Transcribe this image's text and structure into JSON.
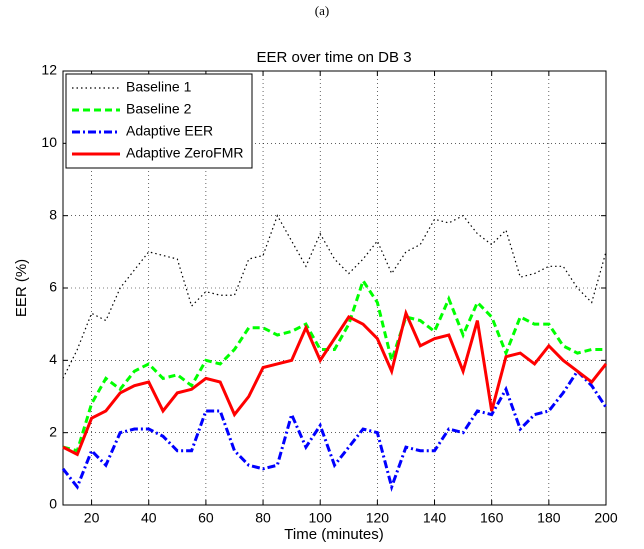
{
  "caption": "(a)",
  "chart_data": {
    "type": "line",
    "title": "EER over time on DB 3",
    "x_label": "Time (minutes)",
    "y_label": "EER (%)",
    "x": [
      10,
      15,
      20,
      25,
      30,
      35,
      40,
      45,
      50,
      55,
      60,
      65,
      70,
      75,
      80,
      85,
      90,
      95,
      100,
      105,
      110,
      115,
      120,
      125,
      130,
      135,
      140,
      145,
      150,
      155,
      160,
      165,
      170,
      175,
      180,
      185,
      190,
      195,
      200
    ],
    "series": [
      {
        "name": "Baseline 1",
        "color": "#000000",
        "linestyle": "dotted",
        "values": [
          3.5,
          4.3,
          5.3,
          5.1,
          6.0,
          6.5,
          7.0,
          6.9,
          6.8,
          5.5,
          5.9,
          5.8,
          5.8,
          6.8,
          6.9,
          8.0,
          7.3,
          6.6,
          7.5,
          6.8,
          6.4,
          6.8,
          7.3,
          6.4,
          7.0,
          7.2,
          7.9,
          7.8,
          8.0,
          7.5,
          7.2,
          7.6,
          6.3,
          6.4,
          6.6,
          6.6,
          6.0,
          5.6,
          7.0
        ]
      },
      {
        "name": "Baseline 2",
        "color": "#00ff00",
        "linestyle": "dashed",
        "values": [
          1.6,
          1.5,
          2.8,
          3.5,
          3.2,
          3.7,
          3.9,
          3.5,
          3.6,
          3.3,
          4.0,
          3.9,
          4.3,
          4.9,
          4.9,
          4.7,
          4.8,
          5.0,
          4.3,
          4.3,
          5.0,
          6.2,
          5.6,
          4.0,
          5.2,
          5.1,
          4.8,
          5.7,
          4.7,
          5.6,
          5.2,
          4.2,
          5.2,
          5.0,
          5.0,
          4.4,
          4.2,
          4.3,
          4.3
        ]
      },
      {
        "name": "Adaptive EER",
        "color": "#0000ff",
        "linestyle": "dashdot",
        "values": [
          1.0,
          0.5,
          1.5,
          1.1,
          2.0,
          2.1,
          2.1,
          1.9,
          1.5,
          1.5,
          2.6,
          2.6,
          1.5,
          1.1,
          1.0,
          1.1,
          2.5,
          1.6,
          2.2,
          1.1,
          1.6,
          2.1,
          2.0,
          0.5,
          1.6,
          1.5,
          1.5,
          2.1,
          2.0,
          2.6,
          2.5,
          3.2,
          2.1,
          2.5,
          2.6,
          3.1,
          3.7,
          3.3,
          2.7
        ]
      },
      {
        "name": "Adaptive ZeroFMR",
        "color": "#ff0000",
        "linestyle": "solid",
        "values": [
          1.6,
          1.4,
          2.4,
          2.6,
          3.1,
          3.3,
          3.4,
          2.6,
          3.1,
          3.2,
          3.5,
          3.4,
          2.5,
          3.0,
          3.8,
          3.9,
          4.0,
          4.9,
          4.0,
          4.6,
          5.2,
          5.0,
          4.6,
          3.7,
          5.3,
          4.4,
          4.6,
          4.7,
          3.7,
          5.1,
          2.6,
          4.1,
          4.2,
          3.9,
          4.4,
          4.0,
          3.7,
          3.4,
          3.9
        ]
      }
    ],
    "xlim": [
      10,
      200
    ],
    "xticks": [
      20,
      40,
      60,
      80,
      100,
      120,
      140,
      160,
      180,
      200
    ],
    "ylim": [
      0,
      12
    ],
    "yticks": [
      0,
      2,
      4,
      6,
      8,
      10,
      12
    ],
    "grid": true,
    "legend": "upper-left"
  }
}
